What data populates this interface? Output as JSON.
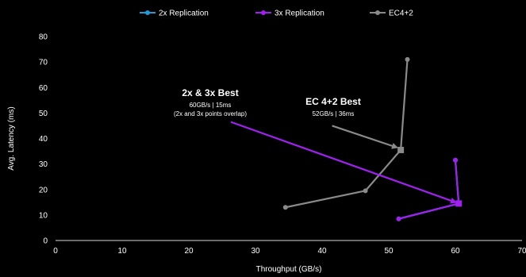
{
  "chart_data": {
    "type": "line",
    "xlabel": "Throughput (GB/s)",
    "ylabel": "Avg. Latency (ms)",
    "xlim": [
      0,
      70
    ],
    "ylim": [
      0,
      80
    ],
    "xticks": [
      0,
      10,
      20,
      30,
      40,
      50,
      60,
      70
    ],
    "yticks": [
      0,
      10,
      20,
      30,
      40,
      50,
      60,
      70,
      80
    ],
    "grid": false,
    "legend_position": "top",
    "series": [
      {
        "name": "2x Replication",
        "color": "#1f9bd7",
        "points": [
          [
            51.5,
            8.5
          ],
          [
            60.5,
            14.5
          ],
          [
            60,
            31.5
          ]
        ]
      },
      {
        "name": "3x Replication",
        "color": "#a020f0",
        "points": [
          [
            51.5,
            8.5
          ],
          [
            60.5,
            14.5
          ],
          [
            60,
            31.5
          ]
        ]
      },
      {
        "name": "EC4+2",
        "color": "#8a8a8a",
        "points": [
          [
            34.5,
            13
          ],
          [
            46.5,
            19.5
          ],
          [
            51.8,
            35.5
          ],
          [
            52.8,
            71
          ]
        ]
      }
    ],
    "highlights": [
      {
        "series": "3x Replication",
        "x": 60.5,
        "y": 14.5
      },
      {
        "series": "EC4+2",
        "x": 51.8,
        "y": 35.5
      }
    ],
    "annotations": [
      {
        "id": "replication-best",
        "title": "2x & 3x Best",
        "lines": [
          "60GB/s | 15ms",
          "(2x and 3x points overlap)"
        ],
        "arrow_color": "#a020f0",
        "arrow_from": [
          26.3,
          46.5
        ],
        "arrow_to": [
          60,
          15
        ]
      },
      {
        "id": "ec-best",
        "title": "EC 4+2 Best",
        "lines": [
          "52GB/s | 36ms"
        ],
        "arrow_color": "#8a8a8a",
        "arrow_from": [
          41.5,
          45
        ],
        "arrow_to": [
          51.2,
          36.5
        ]
      }
    ]
  }
}
